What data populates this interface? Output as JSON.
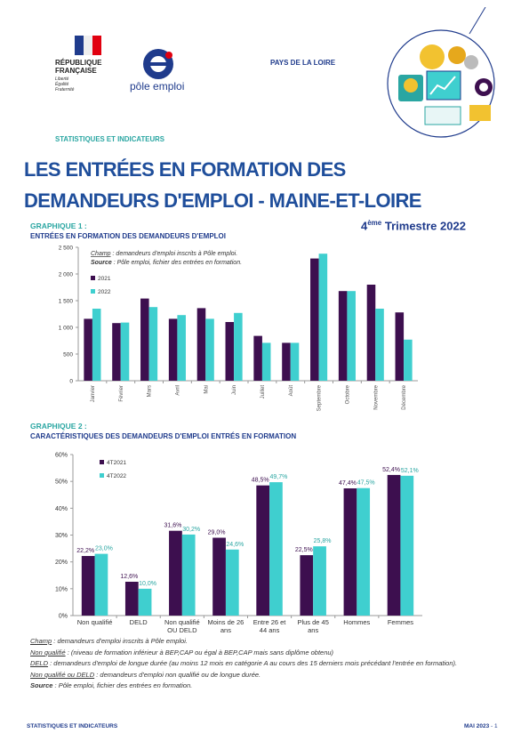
{
  "header": {
    "republic": "RÉPUBLIQUE FRANÇAISE",
    "motto": "Liberté Égalité Fraternité",
    "brand": "pôle emploi",
    "region": "PAYS DE LA LOIRE",
    "section": "STATISTIQUES ET INDICATEURS",
    "title_lines": [
      "LES ENTRÉES EN FORMATION DES",
      "DEMANDEURS D'EMPLOI - MAINE-ET-LOIRE"
    ],
    "period": {
      "number": "4",
      "suffix": "ème",
      "text": "Trimestre 2022"
    }
  },
  "graph1": {
    "label": "GRAPHIQUE 1 :",
    "heading": "ENTRÉES EN FORMATION DES DEMANDEURS D'EMPLOI"
  },
  "graph2": {
    "label": "GRAPHIQUE 2 :",
    "heading": "CARACTÉRISTIQUES DES DEMANDEURS D'EMPLOI ENTRÉS EN FORMATION"
  },
  "chart_data": [
    {
      "type": "bar",
      "annotations": [
        {
          "term": "Champ",
          "text": ": demandeurs d'emploi inscrits à Pôle emploi."
        },
        {
          "term": "Source",
          "text": ": Pôle emploi, fichier des entrées en formation."
        }
      ],
      "categories": [
        "Janvier",
        "Février",
        "Mars",
        "Avril",
        "Mai",
        "Juin",
        "Juillet",
        "Août",
        "Septembre",
        "Octobre",
        "Novembre",
        "Décembre"
      ],
      "series": [
        {
          "name": "2021",
          "color": "#3d0f4f",
          "values": [
            1160,
            1080,
            1540,
            1160,
            1360,
            1100,
            840,
            710,
            2290,
            1680,
            1800,
            1280
          ]
        },
        {
          "name": "2022",
          "color": "#3fcfcf",
          "values": [
            1350,
            1090,
            1380,
            1230,
            1160,
            1270,
            710,
            710,
            2380,
            1680,
            1350,
            770
          ]
        }
      ],
      "ylim": [
        0,
        2500
      ],
      "yticks": [
        0,
        500,
        {
          "value": 1000,
          "label": "1 000"
        },
        {
          "value": 1500,
          "label": "1 500"
        },
        {
          "value": 2000,
          "label": "2 000"
        },
        {
          "value": 2500,
          "label": "2 500"
        }
      ],
      "grid": false
    },
    {
      "type": "bar",
      "categories": [
        "Non qualifié",
        "DELD",
        "Non qualifié OU DELD",
        "Moins de 26 ans",
        "Entre 26 et 44 ans",
        "Plus de 45 ans",
        "Hommes",
        "Femmes"
      ],
      "series": [
        {
          "name": "4T2021",
          "color": "#3d0f4f",
          "values": [
            22.2,
            12.6,
            31.6,
            29.0,
            48.5,
            22.5,
            47.4,
            52.4
          ],
          "value_labels": [
            "22,2%",
            "12,6%",
            "31,6%",
            "29,0%",
            "48,5%",
            "22,5%",
            "47,4%",
            "52,4%"
          ]
        },
        {
          "name": "4T2022",
          "color": "#3fcfcf",
          "values": [
            23.0,
            10.0,
            30.2,
            24.6,
            49.7,
            25.8,
            47.5,
            52.1
          ],
          "value_labels": [
            "23,0%",
            "10,0%",
            "30,2%",
            "24,6%",
            "49,7%",
            "25,8%",
            "47,5%",
            "52,1%"
          ]
        }
      ],
      "ylim": [
        0,
        60
      ],
      "yticks": [
        {
          "value": 0,
          "label": "0%"
        },
        {
          "value": 10,
          "label": "10%"
        },
        {
          "value": 20,
          "label": "20%"
        },
        {
          "value": 30,
          "label": "30%"
        },
        {
          "value": 40,
          "label": "40%"
        },
        {
          "value": 50,
          "label": "50%"
        },
        {
          "value": 60,
          "label": "60%"
        }
      ],
      "grid": false
    }
  ],
  "notes": [
    {
      "term": "Champ",
      "text": ": demandeurs d'emploi inscrits à Pôle emploi."
    },
    {
      "term": "Non qualifié",
      "text": ": (niveau de formation inférieur à BEP,CAP ou égal à BEP,CAP mais sans diplôme obtenu)"
    },
    {
      "term": "DELD",
      "text": ": demandeurs d'emploi de longue durée (au moins 12 mois en catégorie A au cours des 15 derniers mois précédant l'entrée en formation)."
    },
    {
      "term": "Non qualifié ou DELD",
      "text": ": demandeurs d'emploi non qualifié ou de longue durée."
    },
    {
      "term": "Source",
      "text": ": Pôle emploi, fichier des entrées en formation."
    }
  ],
  "footer": {
    "left": "STATISTIQUES ET INDICATEURS",
    "date": "MAI 2023",
    "page": "- 1"
  }
}
